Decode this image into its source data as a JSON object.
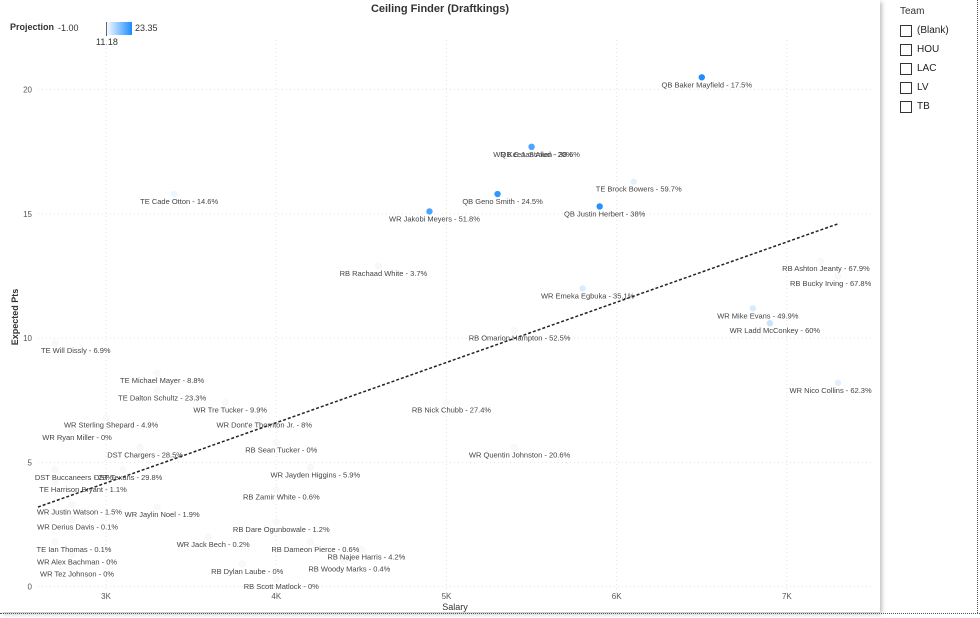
{
  "chart_data": {
    "type": "scatter",
    "title": "Ceiling Finder (Draftkings)",
    "xlabel": "Salary",
    "ylabel": "Expected Pts",
    "xlim": [
      2600,
      7500
    ],
    "ylim": [
      -0.3,
      22
    ],
    "x_ticks": [
      {
        "value": 3000,
        "label": "3K"
      },
      {
        "value": 4000,
        "label": "4K"
      },
      {
        "value": 5000,
        "label": "5K"
      },
      {
        "value": 6000,
        "label": "6K"
      },
      {
        "value": 7000,
        "label": "7K"
      }
    ],
    "y_ticks": [
      {
        "value": 0,
        "label": "0"
      },
      {
        "value": 5,
        "label": "5"
      },
      {
        "value": 10,
        "label": "10"
      },
      {
        "value": 15,
        "label": "15"
      },
      {
        "value": 20,
        "label": "20"
      }
    ],
    "trendline": {
      "x": [
        2600,
        7300
      ],
      "y": [
        3.2,
        14.6
      ]
    },
    "color_legend": {
      "title": "Projection",
      "min": "-1.00",
      "max": "23.35",
      "mid": "11.18",
      "min_color": "#ffffff",
      "max_color": "#1a8cff"
    },
    "points": [
      {
        "label": "QB Baker Mayfield - 17.5%",
        "x": 6500,
        "y": 20.5,
        "proj": 23.0
      },
      {
        "label": "WR Keenan Allen - 38.6%",
        "x": 5500,
        "y": 17.7,
        "proj": 5.0
      },
      {
        "label": "QB C.J. Stroud - 20%",
        "x": 5500,
        "y": 17.7,
        "proj": 18.0
      },
      {
        "label": "TE Brock Bowers - 59.7%",
        "x": 6100,
        "y": 16.3,
        "proj": 2.0
      },
      {
        "label": "TE Cade Otton - 14.6%",
        "x": 3400,
        "y": 15.8,
        "proj": 1.0
      },
      {
        "label": "QB Geno Smith - 24.5%",
        "x": 5300,
        "y": 15.8,
        "proj": 21.0
      },
      {
        "label": "QB Justin Herbert - 38%",
        "x": 5900,
        "y": 15.3,
        "proj": 22.0
      },
      {
        "label": "WR Jakobi Meyers - 51.8%",
        "x": 4900,
        "y": 15.1,
        "proj": 18.0
      },
      {
        "label": "RB Ashton Jeanty - 67.9%",
        "x": 7200,
        "y": 13.1,
        "proj": 0.0
      },
      {
        "label": "RB Rachaad White - 3.7%",
        "x": 4600,
        "y": 12.9,
        "proj": 0.0
      },
      {
        "label": "RB Bucky Irving - 67.8%",
        "x": 7300,
        "y": 12.5,
        "proj": 0.0
      },
      {
        "label": "WR Emeka Egbuka - 35.1%",
        "x": 5800,
        "y": 12.0,
        "proj": 3.0
      },
      {
        "label": "WR Mike Evans - 49.9%",
        "x": 6800,
        "y": 11.2,
        "proj": 3.0
      },
      {
        "label": "WR Ladd McConkey - 60%",
        "x": 6900,
        "y": 10.6,
        "proj": 5.0
      },
      {
        "label": "RB Omarion Hampton - 52.5%",
        "x": 5400,
        "y": 10.3,
        "proj": 0.0
      },
      {
        "label": "TE Will Dissly - 6.9%",
        "x": 2700,
        "y": 9.8,
        "proj": 0.0
      },
      {
        "label": "WR Nico Collins - 62.3%",
        "x": 7300,
        "y": 8.2,
        "proj": 2.0
      },
      {
        "label": "TE Michael Mayer - 8.8%",
        "x": 3300,
        "y": 8.6,
        "proj": 0.0
      },
      {
        "label": "TE Dalton Schultz - 23.3%",
        "x": 3300,
        "y": 7.9,
        "proj": 0.0
      },
      {
        "label": "WR Tre Tucker - 9.9%",
        "x": 3700,
        "y": 7.4,
        "proj": 0.0
      },
      {
        "label": "RB Nick Chubb - 27.4%",
        "x": 5000,
        "y": 7.4,
        "proj": 0.0
      },
      {
        "label": "WR Sterling Shepard - 4.9%",
        "x": 3000,
        "y": 6.8,
        "proj": 0.0
      },
      {
        "label": "WR Dont'e Thornton Jr. - 8%",
        "x": 3900,
        "y": 6.8,
        "proj": 0.0
      },
      {
        "label": "WR Ryan Miller - 0%",
        "x": 2800,
        "y": 6.3,
        "proj": 0.0
      },
      {
        "label": "RB Sean Tucker - 0%",
        "x": 4000,
        "y": 5.8,
        "proj": 0.0
      },
      {
        "label": "DST Chargers - 28.5%",
        "x": 3200,
        "y": 5.6,
        "proj": 0.0
      },
      {
        "label": "WR Quentin Johnston - 20.6%",
        "x": 5400,
        "y": 5.6,
        "proj": 0.0
      },
      {
        "label": "WR Jayden Higgins - 5.9%",
        "x": 4200,
        "y": 4.8,
        "proj": 0.0
      },
      {
        "label": "DST Buccaneers - 29%",
        "x": 2700,
        "y": 4.7,
        "proj": 0.0
      },
      {
        "label": "DST Texans - 29.8%",
        "x": 3100,
        "y": 4.7,
        "proj": 0.0
      },
      {
        "label": "TE Harrison Bryant - 1.1%",
        "x": 2700,
        "y": 4.2,
        "proj": 0.0
      },
      {
        "label": "RB Zamir White - 0.6%",
        "x": 4000,
        "y": 3.9,
        "proj": 0.0
      },
      {
        "label": "WR Justin Watson - 1.5%",
        "x": 2800,
        "y": 3.3,
        "proj": 0.0
      },
      {
        "label": "WR Jaylin Noel - 1.9%",
        "x": 3300,
        "y": 3.2,
        "proj": 0.0
      },
      {
        "label": "WR Derius Davis - 0.1%",
        "x": 2800,
        "y": 2.7,
        "proj": 0.0
      },
      {
        "label": "RB Dare Ogunbowale - 1.2%",
        "x": 4000,
        "y": 2.6,
        "proj": 0.0
      },
      {
        "label": "WR Jack Bech - 0.2%",
        "x": 3600,
        "y": 2.0,
        "proj": 0.0
      },
      {
        "label": "RB Dameon Pierce - 0.6%",
        "x": 4200,
        "y": 1.8,
        "proj": 0.0
      },
      {
        "label": "TE Ian Thomas - 0.1%",
        "x": 2700,
        "y": 1.8,
        "proj": 0.0
      },
      {
        "label": "RB Najee Harris - 4.2%",
        "x": 4500,
        "y": 1.5,
        "proj": 0.0
      },
      {
        "label": "WR Alex Bachman - 0%",
        "x": 2800,
        "y": 1.3,
        "proj": 0.0
      },
      {
        "label": "RB Woody Marks - 0.4%",
        "x": 4400,
        "y": 1.0,
        "proj": 0.0
      },
      {
        "label": "RB Dylan Laube - 0%",
        "x": 3800,
        "y": 0.9,
        "proj": 0.0
      },
      {
        "label": "WR Tez Johnson - 0%",
        "x": 2800,
        "y": 0.8,
        "proj": 0.0
      },
      {
        "label": "RB Scott Matlock - 0%",
        "x": 4000,
        "y": 0.3,
        "proj": 0.0
      }
    ]
  },
  "slicer": {
    "title": "Team",
    "items": [
      "(Blank)",
      "HOU",
      "LAC",
      "LV",
      "TB"
    ]
  }
}
